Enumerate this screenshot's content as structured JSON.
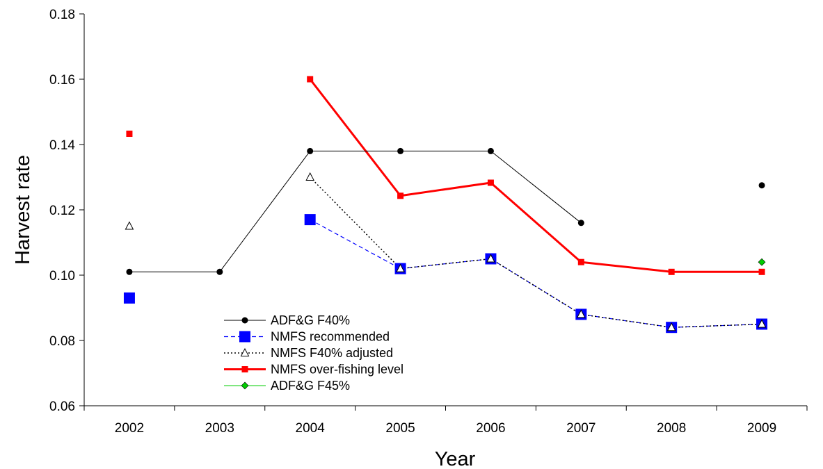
{
  "chart_data": {
    "type": "line",
    "xlabel": "Year",
    "ylabel": "Harvest rate",
    "categories": [
      "2002",
      "2003",
      "2004",
      "2005",
      "2006",
      "2007",
      "2008",
      "2009"
    ],
    "ylim": [
      0.06,
      0.18
    ],
    "yticks": [
      "0.06",
      "0.08",
      "0.10",
      "0.12",
      "0.14",
      "0.16",
      "0.18"
    ],
    "grid": false,
    "legend_position": "bottom-left inside plot",
    "series": [
      {
        "name": "ADF&G F40%",
        "color": "#000000",
        "line": "solid",
        "marker": "circle-filled",
        "values": [
          0.101,
          0.101,
          0.138,
          0.138,
          0.138,
          0.116,
          null,
          0.1275
        ]
      },
      {
        "name": "NMFS recommended",
        "color": "#0000ff",
        "line": "dashed",
        "marker": "square-large",
        "values": [
          0.093,
          null,
          0.117,
          0.102,
          0.105,
          0.088,
          0.084,
          0.085
        ]
      },
      {
        "name": "NMFS F40% adjusted",
        "color": "#000000",
        "line": "dotted",
        "marker": "triangle-open",
        "values": [
          0.115,
          null,
          0.13,
          0.102,
          0.105,
          0.088,
          0.084,
          0.085
        ]
      },
      {
        "name": "NMFS over-fishing level",
        "color": "#ff0000",
        "line": "solid-thick",
        "marker": "square-small",
        "values": [
          0.1433,
          null,
          0.16,
          0.1243,
          0.1283,
          0.104,
          0.101,
          0.101
        ]
      },
      {
        "name": "ADF&G F45%",
        "color": "#00cc00",
        "line": "solid",
        "marker": "diamond",
        "values": [
          null,
          null,
          null,
          null,
          null,
          null,
          null,
          0.104
        ]
      }
    ]
  }
}
